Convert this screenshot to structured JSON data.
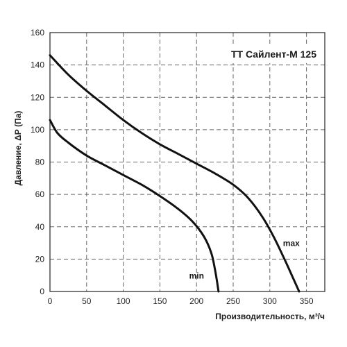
{
  "chart_data": {
    "type": "line",
    "title": "TT Сайлент-М 125",
    "xlabel": "Производительность, м³/ч",
    "ylabel": "Давление, ΔР (Па)",
    "xlim": [
      0,
      375
    ],
    "ylim": [
      0,
      160
    ],
    "xticks": [
      0,
      50,
      100,
      150,
      200,
      250,
      300,
      350
    ],
    "yticks": [
      0,
      20,
      40,
      60,
      80,
      100,
      120,
      140,
      160
    ],
    "grid": true,
    "series": [
      {
        "name": "max",
        "x": [
          0,
          25,
          50,
          75,
          100,
          125,
          150,
          175,
          200,
          225,
          250,
          270,
          290,
          305,
          320,
          330,
          340
        ],
        "y": [
          146,
          134,
          124,
          115,
          106,
          98,
          91,
          85,
          79,
          73,
          66,
          58,
          46,
          34,
          20,
          10,
          0
        ]
      },
      {
        "name": "min",
        "x": [
          0,
          10,
          25,
          50,
          75,
          100,
          125,
          150,
          175,
          195,
          210,
          220,
          225,
          228,
          230
        ],
        "y": [
          106,
          98,
          92,
          84,
          78,
          72,
          66,
          59,
          51,
          43,
          34,
          24,
          14,
          6,
          0
        ]
      }
    ]
  }
}
